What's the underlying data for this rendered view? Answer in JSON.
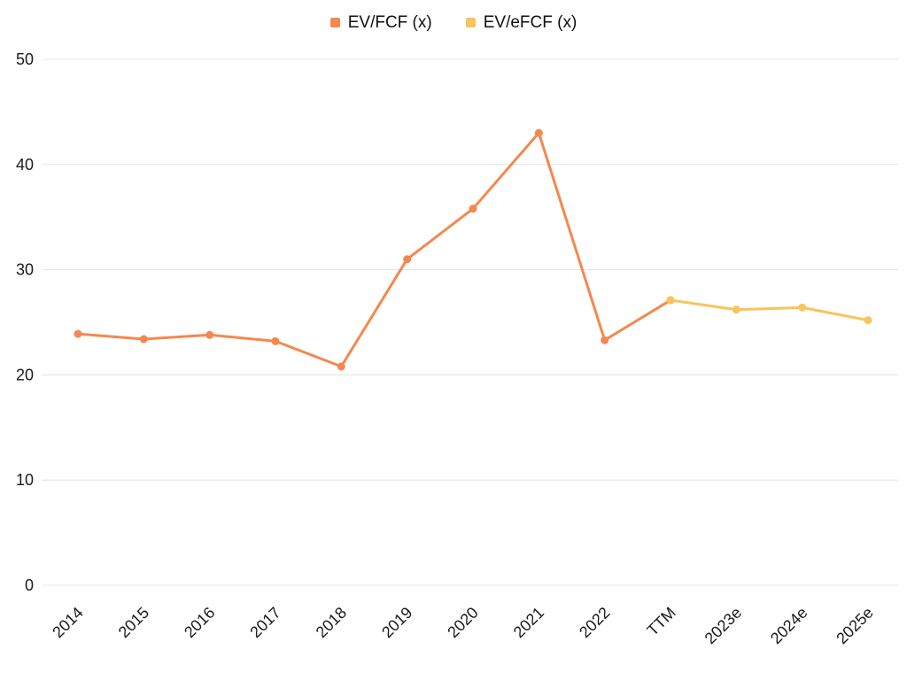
{
  "chart_data": {
    "type": "line",
    "categories": [
      "2014",
      "2015",
      "2016",
      "2017",
      "2018",
      "2019",
      "2020",
      "2021",
      "2022",
      "TTM",
      "2023e",
      "2024e",
      "2025e"
    ],
    "series": [
      {
        "name": "EV/FCF (x)",
        "color": "#F5884E",
        "values": [
          23.9,
          23.4,
          23.8,
          23.2,
          20.8,
          31.0,
          35.8,
          43.0,
          23.3,
          27.1,
          null,
          null,
          null
        ]
      },
      {
        "name": "EV/eFCF (x)",
        "color": "#F8C45C",
        "values": [
          null,
          null,
          null,
          null,
          null,
          null,
          null,
          null,
          null,
          27.1,
          26.2,
          26.4,
          25.2
        ]
      }
    ],
    "title": "",
    "xlabel": "",
    "ylabel": "",
    "ylim": [
      0,
      50
    ],
    "yticks": [
      0,
      10,
      20,
      30,
      40,
      50
    ],
    "grid": true,
    "legend_position": "top-center"
  },
  "style": {
    "grid_color": "#e3e3e3",
    "tick_label_color": "#1a1a1a",
    "background": "#ffffff"
  }
}
